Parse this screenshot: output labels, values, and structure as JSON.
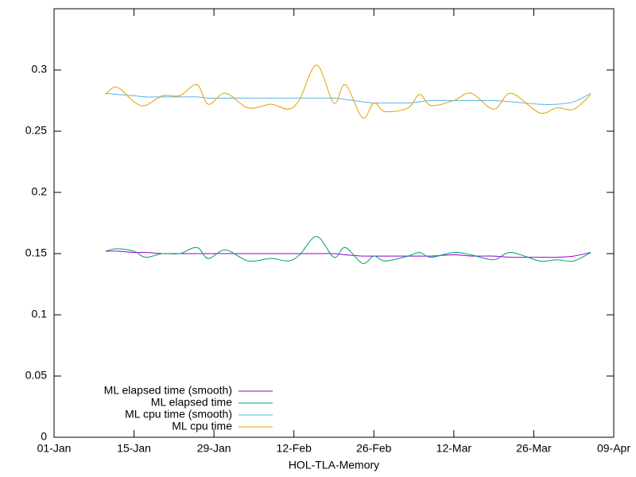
{
  "chart_data": {
    "type": "line",
    "xlabel": "HOL-TLA-Memory",
    "x": [
      9,
      11,
      14,
      16,
      19,
      22,
      25,
      27,
      30,
      34,
      38,
      41,
      43,
      46,
      49,
      51,
      54,
      56,
      58,
      62,
      64,
      66,
      70,
      73,
      77,
      80,
      85,
      88,
      91,
      94
    ],
    "xlim": [
      0,
      98
    ],
    "xticks": [
      {
        "value": 0,
        "label": "01-Jan"
      },
      {
        "value": 14,
        "label": "15-Jan"
      },
      {
        "value": 28,
        "label": "29-Jan"
      },
      {
        "value": 42,
        "label": "12-Feb"
      },
      {
        "value": 56,
        "label": "26-Feb"
      },
      {
        "value": 70,
        "label": "12-Mar"
      },
      {
        "value": 84,
        "label": "26-Mar"
      },
      {
        "value": 98,
        "label": "09-Apr"
      }
    ],
    "ylim": [
      0,
      0.35
    ],
    "yticks": [
      0,
      0.05,
      0.1,
      0.15,
      0.2,
      0.25,
      0.3
    ],
    "grid": false,
    "legend": "bottom-left",
    "series": [
      {
        "name": "ML elapsed time (smooth)",
        "color": "#9400d3",
        "values": [
          0.152,
          0.152,
          0.151,
          0.151,
          0.15,
          0.15,
          0.15,
          0.15,
          0.15,
          0.15,
          0.15,
          0.15,
          0.15,
          0.15,
          0.15,
          0.149,
          0.148,
          0.148,
          0.148,
          0.148,
          0.148,
          0.148,
          0.149,
          0.148,
          0.148,
          0.147,
          0.147,
          0.147,
          0.148,
          0.151
        ]
      },
      {
        "name": "ML elapsed time",
        "color": "#009e73",
        "values": [
          0.152,
          0.154,
          0.152,
          0.147,
          0.15,
          0.15,
          0.155,
          0.146,
          0.153,
          0.144,
          0.146,
          0.144,
          0.149,
          0.164,
          0.147,
          0.155,
          0.142,
          0.148,
          0.144,
          0.148,
          0.151,
          0.147,
          0.151,
          0.149,
          0.145,
          0.151,
          0.144,
          0.145,
          0.144,
          0.151
        ]
      },
      {
        "name": "ML cpu time (smooth)",
        "color": "#56b4e9",
        "values": [
          0.281,
          0.28,
          0.279,
          0.278,
          0.278,
          0.278,
          0.278,
          0.277,
          0.277,
          0.277,
          0.277,
          0.277,
          0.277,
          0.277,
          0.277,
          0.276,
          0.274,
          0.273,
          0.273,
          0.273,
          0.274,
          0.275,
          0.275,
          0.275,
          0.275,
          0.274,
          0.272,
          0.272,
          0.274,
          0.281
        ]
      },
      {
        "name": "ML cpu time",
        "color": "#e69f00",
        "values": [
          0.28,
          0.286,
          0.274,
          0.271,
          0.279,
          0.279,
          0.288,
          0.272,
          0.281,
          0.269,
          0.272,
          0.268,
          0.276,
          0.304,
          0.273,
          0.288,
          0.261,
          0.273,
          0.266,
          0.269,
          0.28,
          0.271,
          0.275,
          0.281,
          0.268,
          0.281,
          0.265,
          0.269,
          0.268,
          0.28
        ]
      }
    ]
  }
}
